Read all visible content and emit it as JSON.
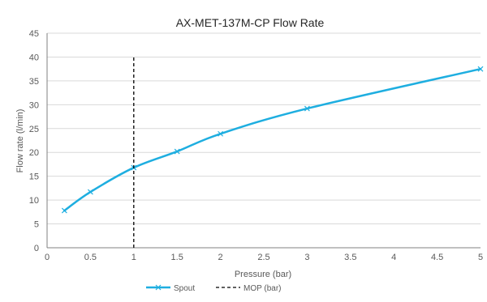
{
  "chart_data": {
    "type": "line",
    "title": "AX-MET-137M-CP Flow Rate",
    "xlabel": "Pressure (bar)",
    "ylabel": "Flow rate (l/min)",
    "xlim": [
      0,
      5
    ],
    "ylim": [
      0,
      45
    ],
    "x_ticks": [
      "0",
      "0.5",
      "1",
      "1.5",
      "2",
      "2.5",
      "3",
      "3.5",
      "4",
      "4.5",
      "5"
    ],
    "y_ticks": [
      "0",
      "5",
      "10",
      "15",
      "20",
      "25",
      "30",
      "35",
      "40",
      "45"
    ],
    "grid": "horizontal",
    "legend_position": "bottom",
    "series": [
      {
        "name": "Spout",
        "color": "#1EAEE0",
        "marker": "x",
        "smooth": true,
        "points": [
          {
            "x": 0.2,
            "y": 7.8
          },
          {
            "x": 0.5,
            "y": 11.7
          },
          {
            "x": 1,
            "y": 16.8
          },
          {
            "x": 1.5,
            "y": 20.2
          },
          {
            "x": 2,
            "y": 23.9
          },
          {
            "x": 3,
            "y": 29.2
          },
          {
            "x": 5,
            "y": 37.5
          }
        ]
      },
      {
        "name": "MOP (bar)",
        "color": "#000000",
        "style": "dashed",
        "points": [
          {
            "x": 1,
            "y": 0
          },
          {
            "x": 1,
            "y": 40
          }
        ]
      }
    ]
  }
}
